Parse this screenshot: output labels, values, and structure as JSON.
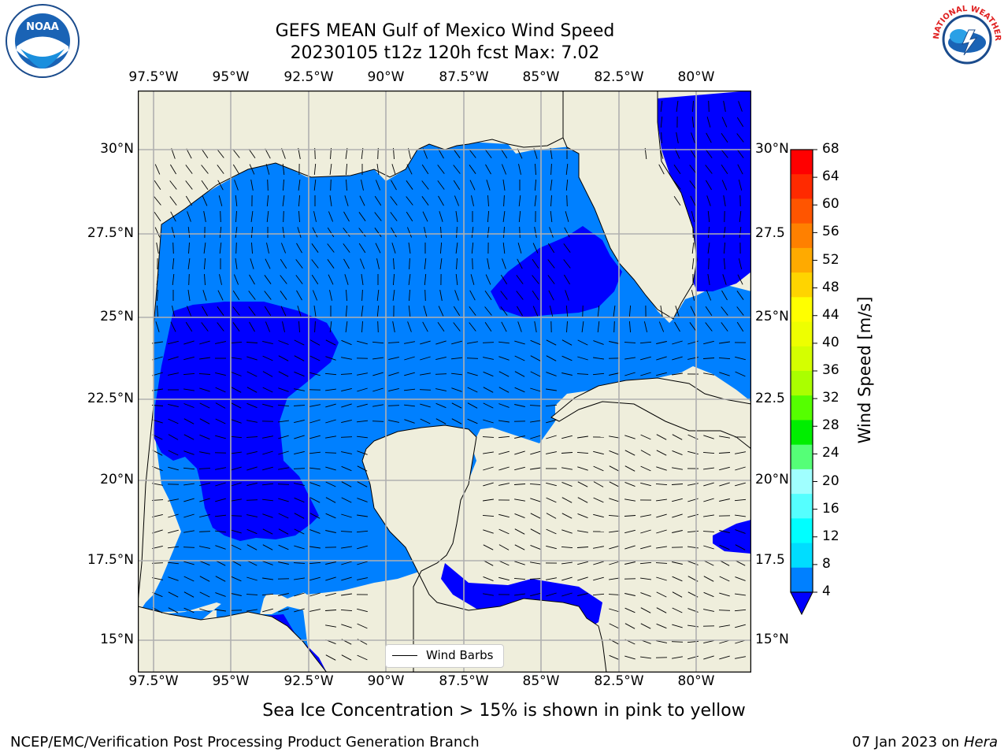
{
  "title_line1": "GEFS MEAN Gulf of Mexico Wind Speed",
  "title_line2": "20230105 t12z 120h fcst   Max: 7.02",
  "logos": {
    "left_text": "NOAA",
    "right_text": "NATIONAL WEATHER SERVICE"
  },
  "map": {
    "lon_labels": [
      "97.5°W",
      "95°W",
      "92.5°W",
      "90°W",
      "87.5°W",
      "85°W",
      "82.5°W",
      "80°W"
    ],
    "lat_labels_left": [
      "30°N",
      "27.5°N",
      "25°N",
      "22.5°N",
      "20°N",
      "17.5°N",
      "15°N"
    ],
    "lat_labels_right": [
      "30°N",
      "27.5",
      "25°N",
      "22.5",
      "20°N",
      "17.5",
      "15°N"
    ],
    "legend_label": "Wind Barbs",
    "colors": {
      "land": "#efeedc",
      "wind_4_8": "#0080ff",
      "wind_below_4": "#0000ff",
      "grid": "#b0b0b0"
    }
  },
  "colorbar": {
    "title": "Wind Speed [m/s]",
    "ticks": [
      "68",
      "64",
      "60",
      "56",
      "52",
      "48",
      "44",
      "40",
      "36",
      "32",
      "28",
      "24",
      "20",
      "16",
      "12",
      "8",
      "4"
    ],
    "colors": [
      "#ff0000",
      "#ff2a00",
      "#ff5500",
      "#ff8000",
      "#ffaa00",
      "#ffd400",
      "#ffff00",
      "#eeff00",
      "#d4ff00",
      "#aaff00",
      "#55ff00",
      "#00ee00",
      "#55ff77",
      "#a0ffff",
      "#55ffff",
      "#00ffff",
      "#00ddff",
      "#0080ff"
    ],
    "extend_color": "#0000ff"
  },
  "caption": "Sea Ice Concentration > 15% is shown in pink to yellow",
  "footer_left": "NCEP/EMC/Verification Post Processing Product Generation Branch",
  "footer_right_date": "07 Jan 2023 on ",
  "footer_right_host": "Hera"
}
